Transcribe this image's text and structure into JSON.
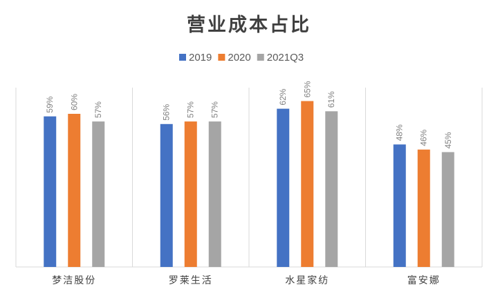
{
  "chart_data": {
    "type": "bar",
    "title": "营业成本占比",
    "xlabel": "",
    "ylabel": "",
    "ylim": [
      0,
      70
    ],
    "grid": "vertical category separators",
    "legend": "top-center",
    "categories": [
      "梦洁股份",
      "罗莱生活",
      "水星家纺",
      "富安娜"
    ],
    "series": [
      {
        "name": "2019",
        "color": "#4472C4",
        "values": [
          59,
          56,
          62,
          48
        ]
      },
      {
        "name": "2020",
        "color": "#ED7D31",
        "values": [
          60,
          57,
          65,
          46
        ]
      },
      {
        "name": "2021Q3",
        "color": "#A5A5A5",
        "values": [
          57,
          57,
          61,
          45
        ]
      }
    ],
    "value_suffix": "%"
  }
}
